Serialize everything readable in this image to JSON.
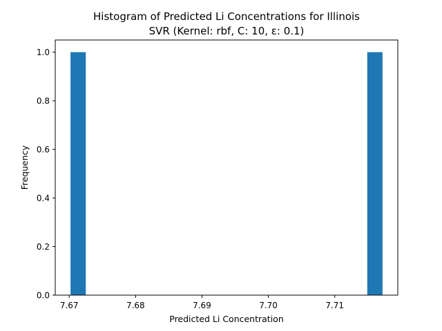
{
  "chart_data": {
    "type": "bar",
    "title": "Histogram of Predicted Li Concentrations for Illinois",
    "subtitle": "SVR (Kernel: rbf, C: 10, ε: 0.1)",
    "xlabel": "Predicted Li Concentration",
    "ylabel": "Frequency",
    "xlim": [
      7.6679,
      7.7195
    ],
    "ylim": [
      0.0,
      1.05
    ],
    "xticks": [
      "7.67",
      "7.68",
      "7.69",
      "7.70",
      "7.71"
    ],
    "yticks": [
      "0.0",
      "0.2",
      "0.4",
      "0.6",
      "0.8",
      "1.0"
    ],
    "bins": [
      {
        "x0": 7.6702,
        "x1": 7.6725,
        "count": 1
      },
      {
        "x0": 7.7149,
        "x1": 7.7172,
        "count": 1
      }
    ],
    "bar_color": "#1f77b4",
    "grid": false,
    "legend": "none"
  }
}
